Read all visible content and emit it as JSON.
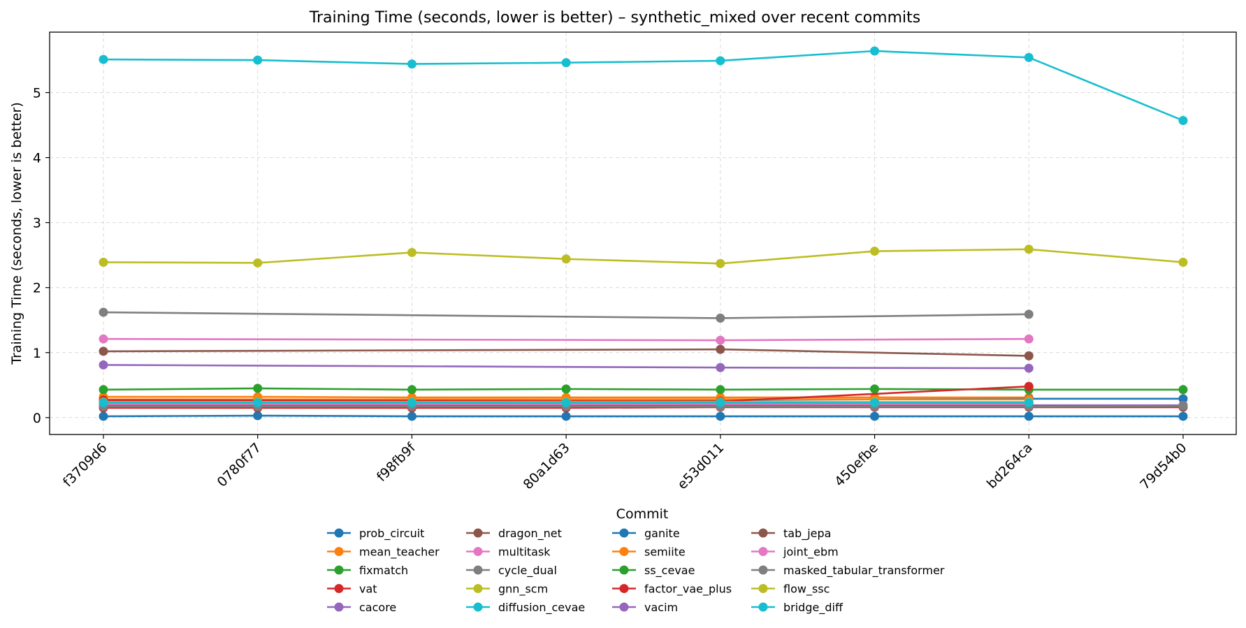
{
  "chart_data": {
    "type": "line",
    "title": "Training Time (seconds, lower is better) – synthetic_mixed over recent commits",
    "xlabel": "Commit",
    "ylabel": "Training Time (seconds, lower is better)",
    "categories": [
      "f3709d6",
      "0780f77",
      "f98fb9f",
      "80a1d63",
      "e53d011",
      "450efbe",
      "bd264ca",
      "79d54b0"
    ],
    "yticks": [
      0,
      1,
      2,
      3,
      4,
      5
    ],
    "ylim": [
      -0.26,
      5.93
    ],
    "grid": true,
    "legend_placement": "below",
    "legend_title": "Commit",
    "series": [
      {
        "name": "prob_circuit",
        "color": "#1f77b4",
        "values": [
          0.02,
          0.03,
          0.02,
          0.02,
          0.02,
          0.02,
          0.02,
          0.02
        ]
      },
      {
        "name": "mean_teacher",
        "color": "#ff7f0e",
        "values": [
          0.32,
          0.32,
          0.31,
          0.31,
          0.31,
          0.31,
          0.31,
          null
        ]
      },
      {
        "name": "fixmatch",
        "color": "#2ca02c",
        "values": [
          0.43,
          0.45,
          0.43,
          0.44,
          0.43,
          0.44,
          0.43,
          0.43
        ]
      },
      {
        "name": "vat",
        "color": "#d62728",
        "values": [
          0.15,
          0.15,
          0.15,
          0.15,
          0.16,
          0.16,
          0.16,
          0.16
        ]
      },
      {
        "name": "cacore",
        "color": "#9467bd",
        "values": [
          0.81,
          null,
          null,
          null,
          0.77,
          null,
          0.76,
          null
        ]
      },
      {
        "name": "dragon_net",
        "color": "#8c564b",
        "values": [
          1.02,
          null,
          null,
          null,
          1.05,
          null,
          0.95,
          null
        ]
      },
      {
        "name": "multitask",
        "color": "#e377c2",
        "values": [
          1.21,
          null,
          null,
          null,
          1.19,
          null,
          1.21,
          null
        ]
      },
      {
        "name": "cycle_dual",
        "color": "#7f7f7f",
        "values": [
          1.62,
          null,
          null,
          null,
          1.53,
          null,
          1.59,
          null
        ]
      },
      {
        "name": "gnn_scm",
        "color": "#bcbd22",
        "values": [
          2.39,
          2.38,
          2.54,
          2.44,
          2.37,
          2.56,
          2.59,
          2.39
        ]
      },
      {
        "name": "diffusion_cevae",
        "color": "#17becf",
        "values": [
          5.51,
          5.5,
          5.44,
          5.46,
          5.49,
          5.64,
          5.54,
          4.57
        ]
      },
      {
        "name": "ganite",
        "color": "#1f77b4",
        "values": [
          0.26,
          0.26,
          0.27,
          0.27,
          0.27,
          0.28,
          0.29,
          0.29
        ]
      },
      {
        "name": "semiite",
        "color": "#ff7f0e",
        "values": [
          0.28,
          0.28,
          0.28,
          0.28,
          0.28,
          0.28,
          0.28,
          null
        ]
      },
      {
        "name": "ss_cevae",
        "color": "#2ca02c",
        "values": [
          0.22,
          0.22,
          0.22,
          0.22,
          0.22,
          0.22,
          0.22,
          null
        ]
      },
      {
        "name": "factor_vae_plus",
        "color": "#d62728",
        "values": [
          0.27,
          null,
          null,
          null,
          0.25,
          null,
          0.48,
          null
        ]
      },
      {
        "name": "vacim",
        "color": "#9467bd",
        "values": [
          0.19,
          0.19,
          0.19,
          0.19,
          0.19,
          0.19,
          0.19,
          0.19
        ]
      },
      {
        "name": "tab_jepa",
        "color": "#8c564b",
        "values": [
          0.18,
          0.18,
          0.18,
          0.18,
          0.18,
          0.18,
          0.18,
          0.17
        ]
      },
      {
        "name": "joint_ebm",
        "color": "#e377c2",
        "values": [
          0.21,
          0.21,
          0.21,
          0.21,
          0.21,
          0.21,
          0.21,
          null
        ]
      },
      {
        "name": "masked_tabular_transformer",
        "color": "#7f7f7f",
        "values": [
          0.17,
          0.17,
          0.17,
          0.17,
          0.17,
          0.17,
          0.17,
          0.18
        ]
      },
      {
        "name": "flow_ssc",
        "color": "#bcbd22",
        "values": [
          0.24,
          0.24,
          0.24,
          0.24,
          0.24,
          0.24,
          0.24,
          null
        ]
      },
      {
        "name": "bridge_diff",
        "color": "#17becf",
        "values": [
          0.23,
          0.23,
          0.23,
          0.23,
          0.23,
          0.23,
          0.23,
          null
        ]
      }
    ]
  }
}
